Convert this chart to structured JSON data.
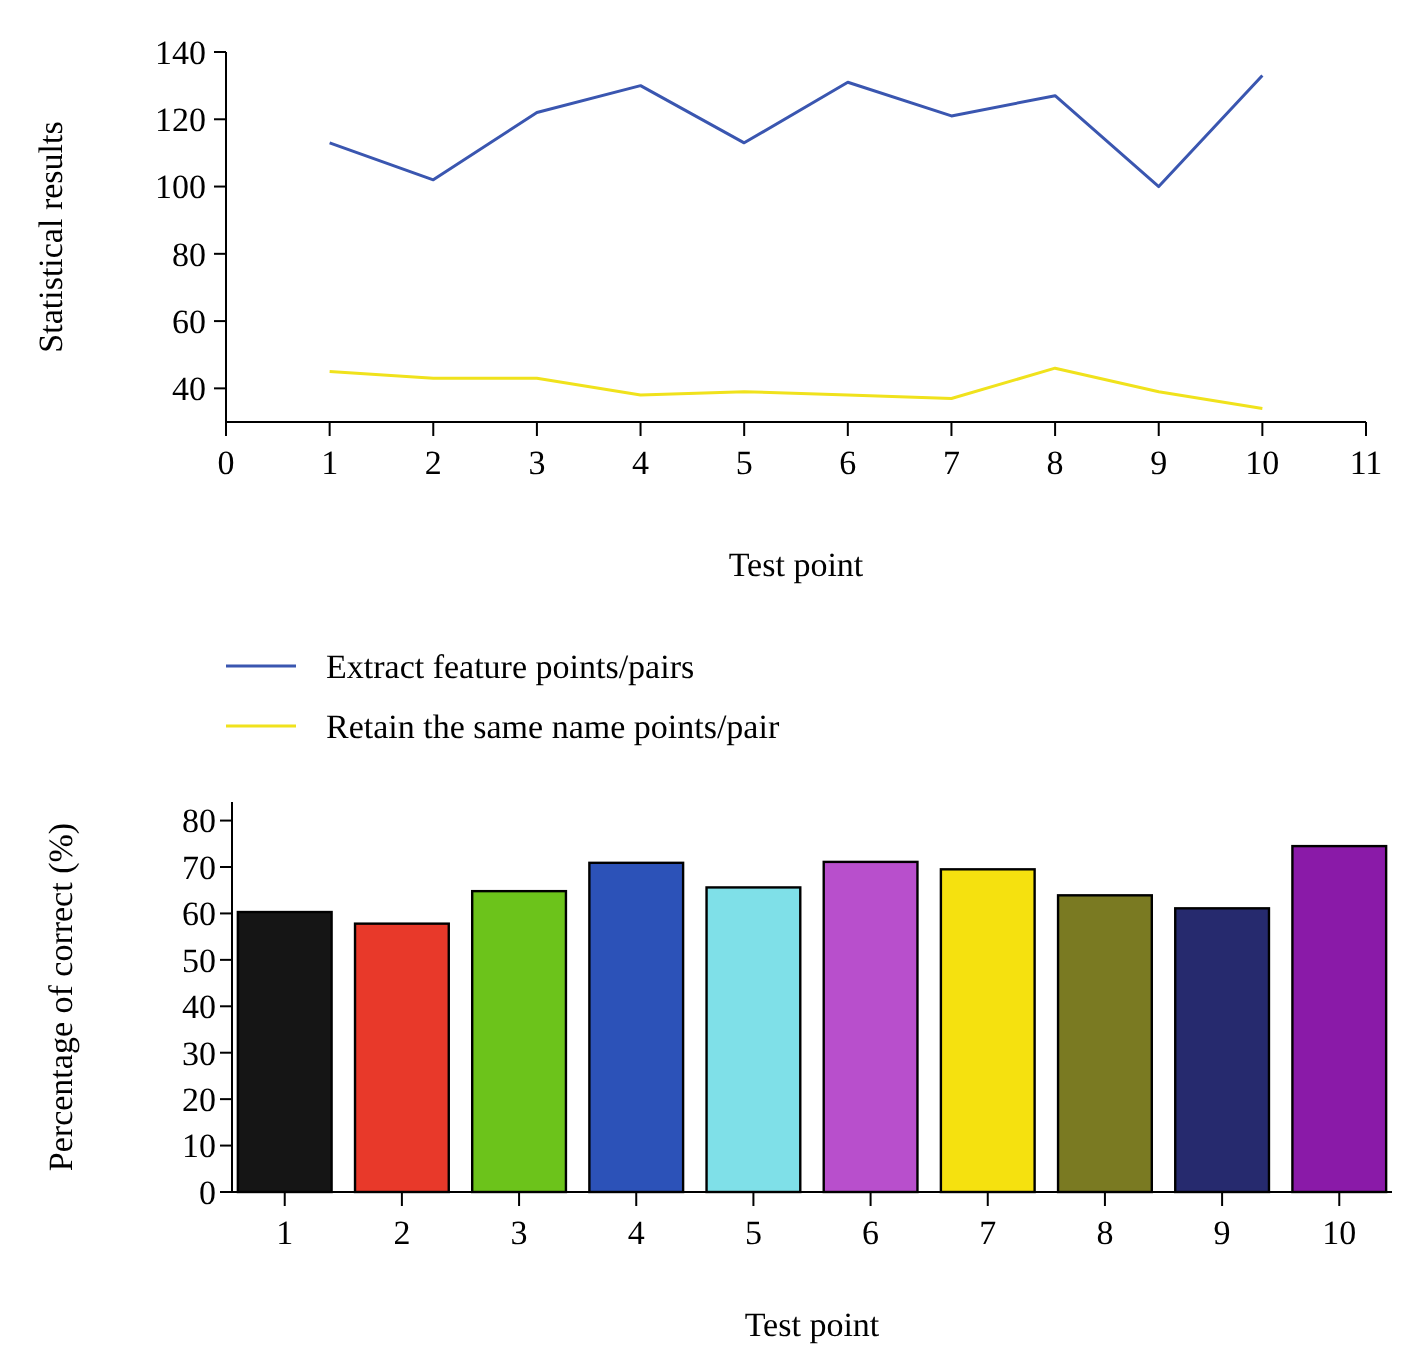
{
  "chart_data": [
    {
      "type": "line",
      "xlabel": "Test point",
      "ylabel": "Statistical results",
      "x": [
        1,
        2,
        3,
        4,
        5,
        6,
        7,
        8,
        9,
        10
      ],
      "series": [
        {
          "name": "Extract feature points/pairs",
          "color": "#3a56b0",
          "values": [
            113,
            102,
            122,
            130,
            113,
            131,
            121,
            127,
            100,
            133
          ]
        },
        {
          "name": "Retain the same name points/pair",
          "color": "#f0e21c",
          "values": [
            45,
            43,
            43,
            38,
            39,
            38,
            37,
            46,
            39,
            34
          ]
        }
      ],
      "xlim": [
        0,
        11
      ],
      "xticks": [
        0,
        1,
        2,
        3,
        4,
        5,
        6,
        7,
        8,
        9,
        10,
        11
      ],
      "ylim": [
        30,
        140
      ],
      "yticks": [
        40,
        60,
        80,
        100,
        120,
        140
      ],
      "legend": "bottom",
      "grid": false
    },
    {
      "type": "bar",
      "xlabel": "Test point",
      "ylabel": "Percentage of correct (%)",
      "categories": [
        "1",
        "2",
        "3",
        "4",
        "5",
        "6",
        "7",
        "8",
        "9",
        "10"
      ],
      "values": [
        60.3,
        57.8,
        64.8,
        70.9,
        65.6,
        71.1,
        69.5,
        63.9,
        61.1,
        74.5
      ],
      "colors": [
        "#151515",
        "#e8392a",
        "#6cc31b",
        "#2c52b8",
        "#7fe0e8",
        "#b84fcc",
        "#f5e10f",
        "#7a7a22",
        "#262a6e",
        "#8a1aa8"
      ],
      "ylim": [
        0,
        84
      ],
      "yticks": [
        0,
        10,
        20,
        30,
        40,
        50,
        60,
        70,
        80
      ],
      "grid": false
    }
  ]
}
